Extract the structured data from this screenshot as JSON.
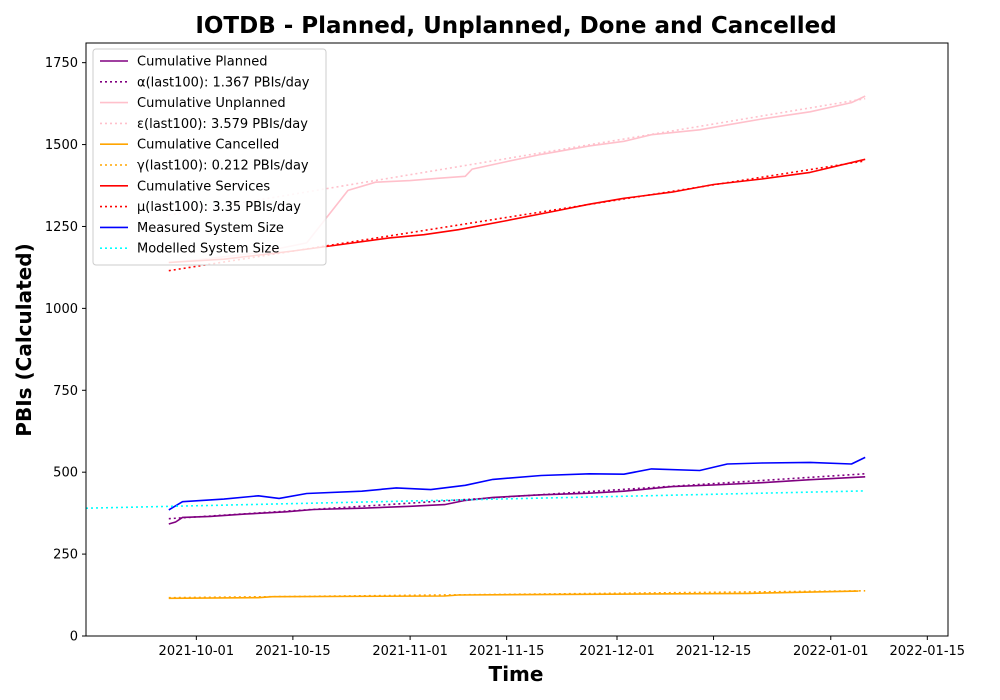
{
  "chart_data": {
    "type": "line",
    "title": "IOTDB - Planned, Unplanned, Done  and Cancelled",
    "xlabel": "Time",
    "ylabel": "PBIs (Calculated)",
    "x_axis": {
      "type": "date",
      "range": [
        "2021-09-15",
        "2022-01-18"
      ],
      "ticks": [
        "2021-10-01",
        "2021-10-15",
        "2021-11-01",
        "2021-11-15",
        "2021-12-01",
        "2021-12-15",
        "2022-01-01",
        "2022-01-15"
      ]
    },
    "y_axis": {
      "range": [
        0,
        1810
      ],
      "ticks": [
        0,
        250,
        500,
        750,
        1000,
        1250,
        1500,
        1750
      ]
    },
    "grid": false,
    "legend_position": "top-left",
    "series": [
      {
        "name": "Cumulative Planned",
        "color": "#800080",
        "style": "solid",
        "points": [
          [
            "2021-09-27",
            342
          ],
          [
            "2021-09-28",
            348
          ],
          [
            "2021-09-29",
            362
          ],
          [
            "2021-10-03",
            365
          ],
          [
            "2021-10-08",
            372
          ],
          [
            "2021-10-14",
            379
          ],
          [
            "2021-10-18",
            386
          ],
          [
            "2021-10-25",
            390
          ],
          [
            "2021-11-01",
            396
          ],
          [
            "2021-11-06",
            401
          ],
          [
            "2021-11-09",
            414
          ],
          [
            "2021-11-13",
            423
          ],
          [
            "2021-11-20",
            431
          ],
          [
            "2021-11-27",
            436
          ],
          [
            "2021-12-02",
            442
          ],
          [
            "2021-12-09",
            456
          ],
          [
            "2021-12-15",
            461
          ],
          [
            "2021-12-22",
            468
          ],
          [
            "2021-12-29",
            477
          ],
          [
            "2022-01-06",
            486
          ]
        ]
      },
      {
        "name": "α(last100): 1.367 PBIs/day",
        "color": "#800080",
        "style": "dotted",
        "points": [
          [
            "2021-09-27",
            358
          ],
          [
            "2022-01-06",
            495
          ]
        ]
      },
      {
        "name": "Cumulative Unplanned",
        "color": "#ffc0cb",
        "style": "solid",
        "points": [
          [
            "2021-09-27",
            1140
          ],
          [
            "2021-10-02",
            1150
          ],
          [
            "2021-10-10",
            1170
          ],
          [
            "2021-10-17",
            1200
          ],
          [
            "2021-10-23",
            1360
          ],
          [
            "2021-10-27",
            1385
          ],
          [
            "2021-11-01",
            1390
          ],
          [
            "2021-11-05",
            1397
          ],
          [
            "2021-11-09",
            1403
          ],
          [
            "2021-11-10",
            1425
          ],
          [
            "2021-11-15",
            1448
          ],
          [
            "2021-11-20",
            1470
          ],
          [
            "2021-11-27",
            1496
          ],
          [
            "2021-12-02",
            1510
          ],
          [
            "2021-12-06",
            1530
          ],
          [
            "2021-12-13",
            1545
          ],
          [
            "2021-12-17",
            1560
          ],
          [
            "2021-12-22",
            1578
          ],
          [
            "2021-12-29",
            1600
          ],
          [
            "2022-01-04",
            1628
          ],
          [
            "2022-01-06",
            1648
          ]
        ]
      },
      {
        "name": "ε(last100): 3.579 PBIs/day",
        "color": "#ffc0cb",
        "style": "dotted",
        "points": [
          [
            "2021-09-27",
            1285
          ],
          [
            "2022-01-06",
            1640
          ]
        ]
      },
      {
        "name": "Cumulative Cancelled",
        "color": "#ffa500",
        "style": "solid",
        "points": [
          [
            "2021-09-27",
            115
          ],
          [
            "2021-10-10",
            117
          ],
          [
            "2021-10-12",
            120
          ],
          [
            "2021-11-06",
            122
          ],
          [
            "2021-11-08",
            125
          ],
          [
            "2021-12-20",
            130
          ],
          [
            "2022-01-05",
            137
          ]
        ]
      },
      {
        "name": "γ(last100): 0.212 PBIs/day",
        "color": "#ffa500",
        "style": "dotted",
        "points": [
          [
            "2021-09-27",
            117
          ],
          [
            "2022-01-06",
            138
          ]
        ]
      },
      {
        "name": "Cumulative Services",
        "color": "#ff0000",
        "style": "solid",
        "points": [
          [
            "2021-09-27",
            1140
          ],
          [
            "2021-10-05",
            1150
          ],
          [
            "2021-10-15",
            1175
          ],
          [
            "2021-10-22",
            1195
          ],
          [
            "2021-10-29",
            1215
          ],
          [
            "2021-11-03",
            1225
          ],
          [
            "2021-11-08",
            1240
          ],
          [
            "2021-11-15",
            1268
          ],
          [
            "2021-11-22",
            1297
          ],
          [
            "2021-11-27",
            1318
          ],
          [
            "2021-12-02",
            1336
          ],
          [
            "2021-12-09",
            1355
          ],
          [
            "2021-12-15",
            1378
          ],
          [
            "2021-12-22",
            1395
          ],
          [
            "2021-12-29",
            1415
          ],
          [
            "2022-01-06",
            1455
          ]
        ]
      },
      {
        "name": "μ(last100): 3.35 PBIs/day",
        "color": "#ff0000",
        "style": "dotted",
        "points": [
          [
            "2021-09-27",
            1115
          ],
          [
            "2022-01-06",
            1450
          ]
        ]
      },
      {
        "name": "Measured System Size",
        "color": "#0000ff",
        "style": "solid",
        "points": [
          [
            "2021-09-27",
            385
          ],
          [
            "2021-09-29",
            410
          ],
          [
            "2021-10-05",
            418
          ],
          [
            "2021-10-10",
            428
          ],
          [
            "2021-10-13",
            420
          ],
          [
            "2021-10-17",
            435
          ],
          [
            "2021-10-25",
            442
          ],
          [
            "2021-10-30",
            452
          ],
          [
            "2021-11-04",
            447
          ],
          [
            "2021-11-09",
            460
          ],
          [
            "2021-11-13",
            478
          ],
          [
            "2021-11-20",
            490
          ],
          [
            "2021-11-27",
            495
          ],
          [
            "2021-12-02",
            494
          ],
          [
            "2021-12-06",
            510
          ],
          [
            "2021-12-13",
            505
          ],
          [
            "2021-12-17",
            525
          ],
          [
            "2021-12-22",
            528
          ],
          [
            "2021-12-29",
            530
          ],
          [
            "2022-01-04",
            525
          ],
          [
            "2022-01-06",
            545
          ]
        ]
      },
      {
        "name": "Modelled System Size",
        "color": "#00ffff",
        "style": "dotted",
        "points": [
          [
            "2021-09-15",
            390
          ],
          [
            "2022-01-06",
            443
          ]
        ]
      }
    ]
  }
}
